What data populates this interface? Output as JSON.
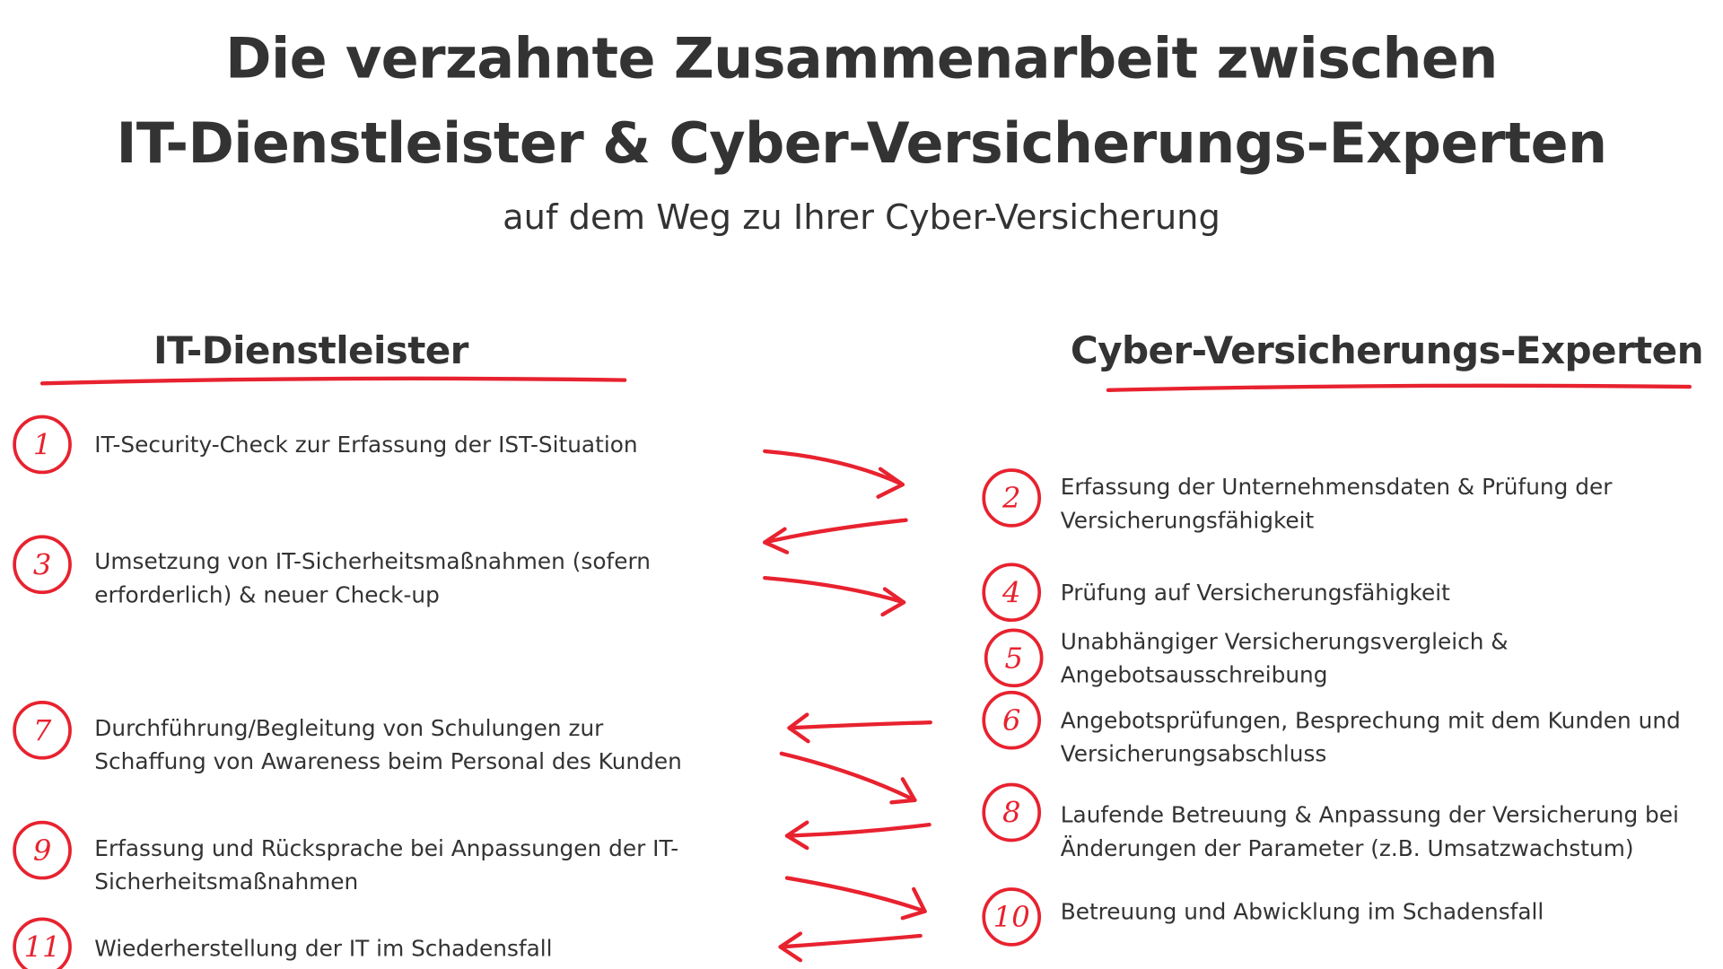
{
  "title": {
    "line1": "Die verzahnte Zusammenarbeit zwischen",
    "line2": "IT-Dienstleister & Cyber-Versicherungs-Experten",
    "subtitle": "auf dem Weg zu Ihrer Cyber-Versicherung"
  },
  "colors": {
    "accent": "#e8222f",
    "text": "#333333"
  },
  "left": {
    "heading": "IT-Dienstleister",
    "items": [
      {
        "num": "1",
        "text": "IT-Security-Check zur Erfassung der IST-Situation"
      },
      {
        "num": "3",
        "text": "Umsetzung von IT-Sicherheitsmaßnahmen (sofern erforderlich) & neuer Check-up"
      },
      {
        "num": "7",
        "text": "Durchführung/Begleitung von Schulungen zur Schaffung von Awareness beim Personal des Kunden"
      },
      {
        "num": "9",
        "text": "Erfassung und Rücksprache bei Anpassungen der IT-Sicherheitsmaßnahmen"
      },
      {
        "num": "11",
        "text": "Wiederherstellung der IT im Schadensfall"
      }
    ]
  },
  "right": {
    "heading": "Cyber-Versicherungs-Experten",
    "items": [
      {
        "num": "2",
        "text": "Erfassung der Unternehmensdaten & Prüfung der Versicherungsfähigkeit"
      },
      {
        "num": "4",
        "text": "Prüfung auf Versicherungsfähigkeit"
      },
      {
        "num": "5",
        "text": "Unabhängiger Versicherungsvergleich & Angebotsausschreibung"
      },
      {
        "num": "6",
        "text": "Angebotsprüfungen, Besprechung mit dem Kunden und Versicherungsabschluss"
      },
      {
        "num": "8",
        "text": "Laufende Betreuung & Anpassung der Versicherung bei Änderungen der Parameter (z.B. Umsatzwachstum)"
      },
      {
        "num": "10",
        "text": "Betreuung und Abwicklung im Schadensfall"
      }
    ]
  }
}
